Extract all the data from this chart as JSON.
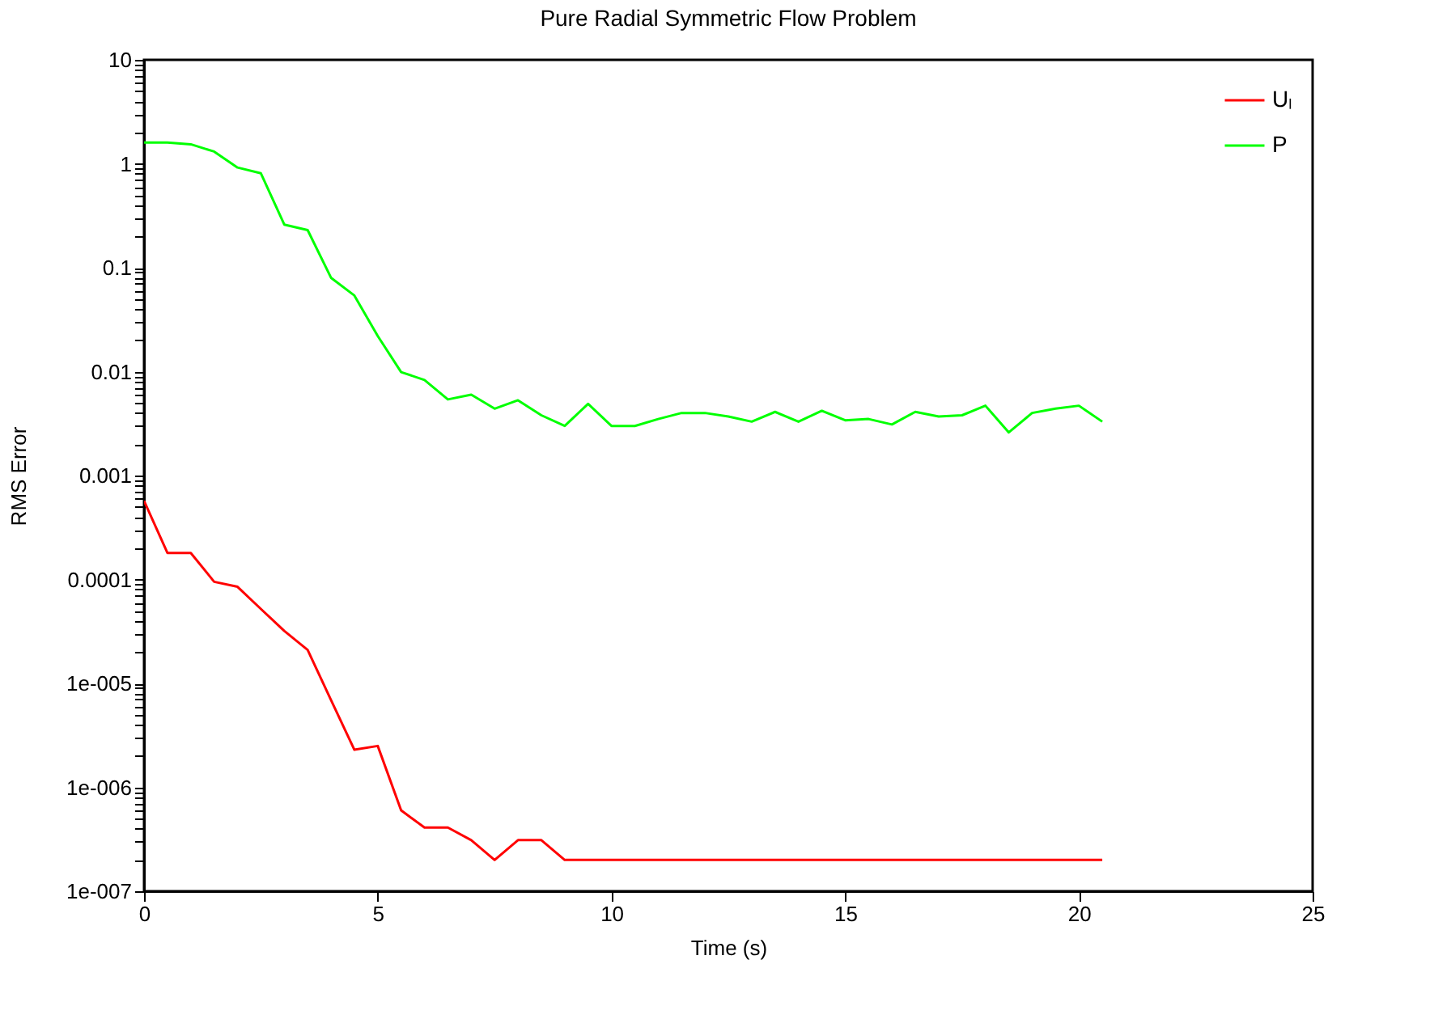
{
  "chart_data": {
    "type": "line",
    "title": "Pure Radial Symmetric Flow Problem",
    "xlabel": "Time (s)",
    "ylabel": "RMS Error",
    "x": [
      0,
      0.5,
      1,
      1.5,
      2,
      2.5,
      3,
      3.5,
      4,
      4.5,
      5,
      5.5,
      6,
      6.5,
      7,
      7.5,
      8,
      8.5,
      9,
      9.5,
      10,
      10.5,
      11,
      11.5,
      12,
      12.5,
      13,
      13.5,
      14,
      14.5,
      15,
      15.5,
      16,
      16.5,
      17,
      17.5,
      18,
      18.5,
      19,
      19.5,
      20,
      20.5
    ],
    "series": [
      {
        "name": "Uₗ",
        "color": "#ff0000",
        "values": [
          0.00057,
          0.00018,
          0.00018,
          9.5e-05,
          8.5e-05,
          5.2e-05,
          3.2e-05,
          2.1e-05,
          6.9e-06,
          2.3e-06,
          2.5e-06,
          6e-07,
          4.1e-07,
          4.1e-07,
          3.1e-07,
          2e-07,
          3.1e-07,
          3.1e-07,
          2e-07,
          2e-07,
          2e-07,
          2e-07,
          2e-07,
          2e-07,
          2e-07,
          2e-07,
          2e-07,
          2e-07,
          2e-07,
          2e-07,
          2e-07,
          2e-07,
          2e-07,
          2e-07,
          2e-07,
          2e-07,
          2e-07,
          2e-07,
          2e-07,
          2e-07,
          2e-07,
          2e-07
        ]
      },
      {
        "name": "P",
        "color": "#00ff00",
        "values": [
          1.6,
          1.6,
          1.54,
          1.31,
          0.92,
          0.81,
          0.26,
          0.23,
          0.08,
          0.054,
          0.022,
          0.0099,
          0.0083,
          0.0054,
          0.006,
          0.0044,
          0.0053,
          0.0038,
          0.003,
          0.0049,
          0.003,
          0.003,
          0.0035,
          0.004,
          0.004,
          0.0037,
          0.0033,
          0.0041,
          0.0033,
          0.0042,
          0.0034,
          0.0035,
          0.0031,
          0.0041,
          0.0037,
          0.0038,
          0.0047,
          0.0026,
          0.004,
          0.0044,
          0.0047,
          0.0033
        ]
      }
    ],
    "log": "y",
    "xlim": [
      0,
      25
    ],
    "xticks": [
      0,
      5,
      10,
      15,
      20,
      25
    ],
    "ylim": [
      1e-07,
      10
    ],
    "yticks": [
      {
        "value": 1e-07,
        "label": "1e-007"
      },
      {
        "value": 1e-06,
        "label": "1e-006"
      },
      {
        "value": 1e-05,
        "label": "1e-005"
      },
      0.0001,
      0.001,
      0.01,
      0.1,
      1,
      10,
      {
        "value": 2e-07,
        "label": null
      },
      {
        "value": 3e-07,
        "label": null
      },
      {
        "value": 4e-07,
        "label": null
      },
      {
        "value": 5e-07,
        "label": null
      },
      {
        "value": 6e-07,
        "label": null
      },
      {
        "value": 7e-07,
        "label": null
      },
      {
        "value": 8e-07,
        "label": null
      },
      {
        "value": 9e-07,
        "label": null
      },
      {
        "value": 2e-06,
        "label": null
      },
      {
        "value": 3e-06,
        "label": null
      },
      {
        "value": 4e-06,
        "label": null
      },
      {
        "value": 5e-06,
        "label": null
      },
      {
        "value": 6e-06,
        "label": null
      },
      {
        "value": 7e-06,
        "label": null
      },
      {
        "value": 8e-06,
        "label": null
      },
      {
        "value": 9e-06,
        "label": null
      },
      {
        "value": 2e-05,
        "label": null
      },
      {
        "value": 3e-05,
        "label": null
      },
      {
        "value": 4e-05,
        "label": null
      },
      {
        "value": 5e-05,
        "label": null
      },
      {
        "value": 6e-05,
        "label": null
      },
      {
        "value": 7e-05,
        "label": null
      },
      {
        "value": 8e-05,
        "label": null
      },
      {
        "value": 9e-05,
        "label": null
      },
      {
        "value": 0.0002,
        "label": null
      },
      {
        "value": 0.0003,
        "label": null
      },
      {
        "value": 0.0004,
        "label": null
      },
      {
        "value": 0.0005,
        "label": null
      },
      {
        "value": 0.0006,
        "label": null
      },
      {
        "value": 0.0007,
        "label": null
      },
      {
        "value": 0.0008,
        "label": null
      },
      {
        "value": 0.0009,
        "label": null
      },
      {
        "value": 0.002,
        "label": null
      },
      {
        "value": 0.003,
        "label": null
      },
      {
        "value": 0.004,
        "label": null
      },
      {
        "value": 0.005,
        "label": null
      },
      {
        "value": 0.006,
        "label": null
      },
      {
        "value": 0.007,
        "label": null
      },
      {
        "value": 0.008,
        "label": null
      },
      {
        "value": 0.009,
        "label": null
      },
      {
        "value": 0.02,
        "label": null
      },
      {
        "value": 0.03,
        "label": null
      },
      {
        "value": 0.04,
        "label": null
      },
      {
        "value": 0.05,
        "label": null
      },
      {
        "value": 0.06,
        "label": null
      },
      {
        "value": 0.07,
        "label": null
      },
      {
        "value": 0.08,
        "label": null
      },
      {
        "value": 0.09,
        "label": null
      },
      {
        "value": 0.2,
        "label": null
      },
      {
        "value": 0.3,
        "label": null
      },
      {
        "value": 0.4,
        "label": null
      },
      {
        "value": 0.5,
        "label": null
      },
      {
        "value": 0.6,
        "label": null
      },
      {
        "value": 0.7,
        "label": null
      },
      {
        "value": 0.8,
        "label": null
      },
      {
        "value": 0.9,
        "label": null
      },
      {
        "value": 2,
        "label": null
      },
      {
        "value": 3,
        "label": null
      },
      {
        "value": 4,
        "label": null
      },
      {
        "value": 5,
        "label": null
      },
      {
        "value": 6,
        "label": null
      },
      {
        "value": 7,
        "label": null
      },
      {
        "value": 8,
        "label": null
      },
      {
        "value": 9,
        "label": null
      }
    ],
    "grid": false,
    "legend": "top right",
    "marker": "none",
    "line_style": "solid"
  }
}
